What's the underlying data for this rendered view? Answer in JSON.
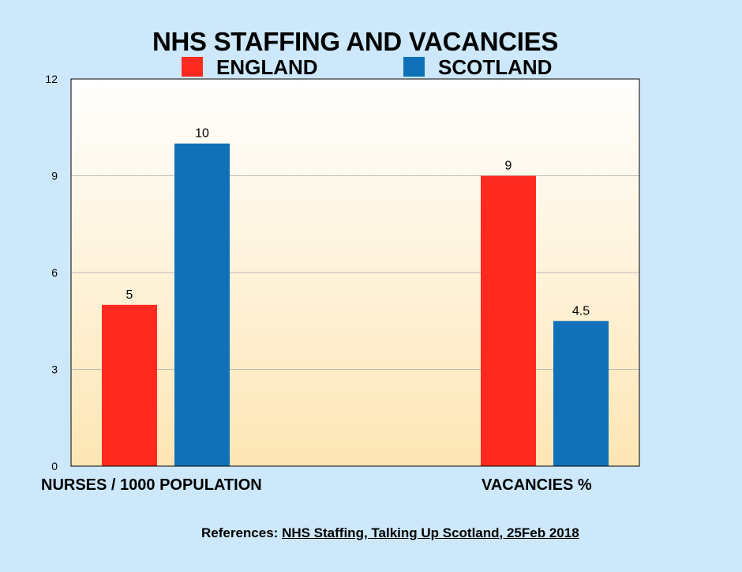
{
  "chart_data": {
    "type": "bar",
    "title": "NHS STAFFING AND VACANCIES",
    "categories": [
      "NURSES / 1000 POPULATION",
      "VACANCIES  %"
    ],
    "series": [
      {
        "name": "ENGLAND",
        "color": "#ff2a1f",
        "values": [
          5,
          9
        ],
        "labels": [
          "5",
          "9"
        ]
      },
      {
        "name": "SCOTLAND",
        "color": "#1071b8",
        "values": [
          10,
          4.5
        ],
        "labels": [
          "10",
          "4.5"
        ]
      }
    ],
    "ylim": [
      0,
      12
    ],
    "yticks": [
      0,
      3,
      6,
      9,
      12
    ],
    "xlabel": "",
    "ylabel": "",
    "grid": true,
    "legend": "top"
  },
  "reference": {
    "prefix": "References: ",
    "link_text": "NHS Staffing, Talking Up Scotland, 25Feb 2018"
  }
}
